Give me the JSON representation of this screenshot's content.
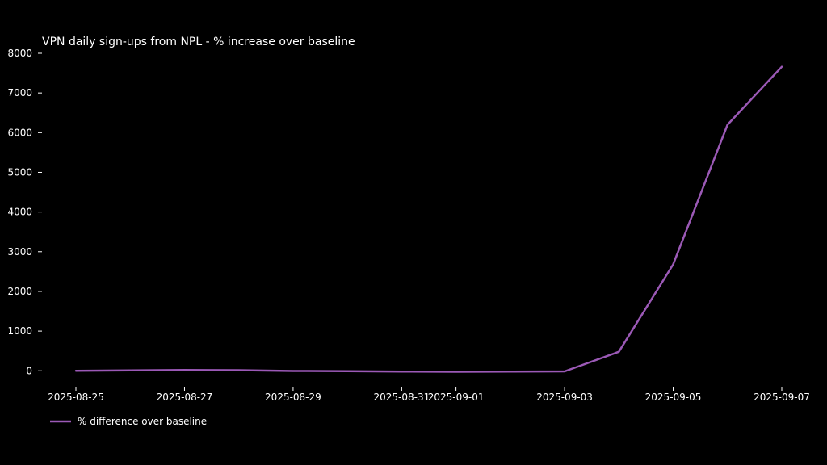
{
  "chart_data": {
    "type": "line",
    "title": "VPN daily sign-ups from NPL - % increase over baseline",
    "xlabel": "",
    "ylabel": "",
    "x": [
      "2025-08-25",
      "2025-08-26",
      "2025-08-27",
      "2025-08-28",
      "2025-08-29",
      "2025-08-30",
      "2025-08-31",
      "2025-09-01",
      "2025-09-02",
      "2025-09-03",
      "2025-09-04",
      "2025-09-05",
      "2025-09-06",
      "2025-09-07"
    ],
    "x_ticks": [
      "2025-08-25",
      "2025-08-27",
      "2025-08-29",
      "2025-08-31",
      "2025-09-01",
      "2025-09-03",
      "2025-09-05",
      "2025-09-07"
    ],
    "y_ticks": [
      0,
      1000,
      2000,
      3000,
      4000,
      5000,
      6000,
      7000,
      8000
    ],
    "ylim": [
      -300,
      8000
    ],
    "grid": false,
    "legend_placement": "bottom-left",
    "series": [
      {
        "name": "% difference over baseline",
        "color": "#9b59b6",
        "values": [
          0,
          10,
          20,
          15,
          -5,
          -10,
          -20,
          -25,
          -20,
          -15,
          480,
          2680,
          6200,
          7660
        ]
      }
    ]
  }
}
